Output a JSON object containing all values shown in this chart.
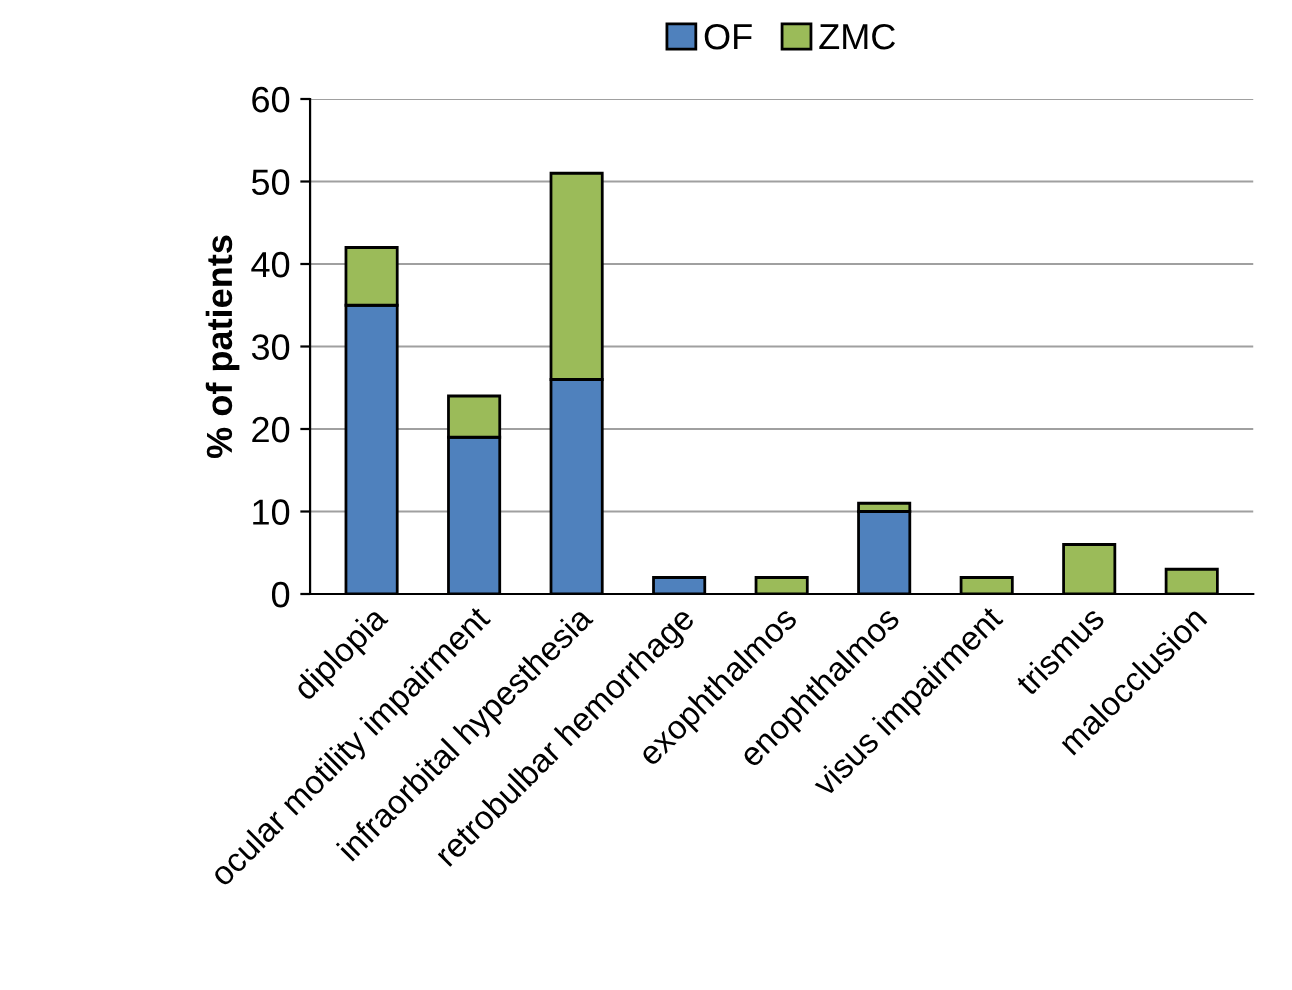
{
  "chart_data": {
    "type": "bar",
    "stacked": true,
    "ylabel": "% of patients",
    "categories": [
      "diplopia",
      "ocular motility impairment",
      "infraorbital hypesthesia",
      "retrobulbar hemorrhage",
      "exophthalmos",
      "enophthalmos",
      "visus impairment",
      "trismus",
      "malocclusion"
    ],
    "series": [
      {
        "name": "OF",
        "color": "#4f81bd",
        "values": [
          35,
          19,
          26,
          2,
          0,
          10,
          0,
          0,
          0
        ]
      },
      {
        "name": "ZMC",
        "color": "#9bbb59",
        "values": [
          7,
          5,
          25,
          0,
          2,
          1,
          2,
          6,
          3
        ]
      }
    ],
    "ylim": [
      0,
      60
    ],
    "yticks": [
      0,
      10,
      20,
      30,
      40,
      50,
      60
    ],
    "grid": "y",
    "legend": "top"
  }
}
